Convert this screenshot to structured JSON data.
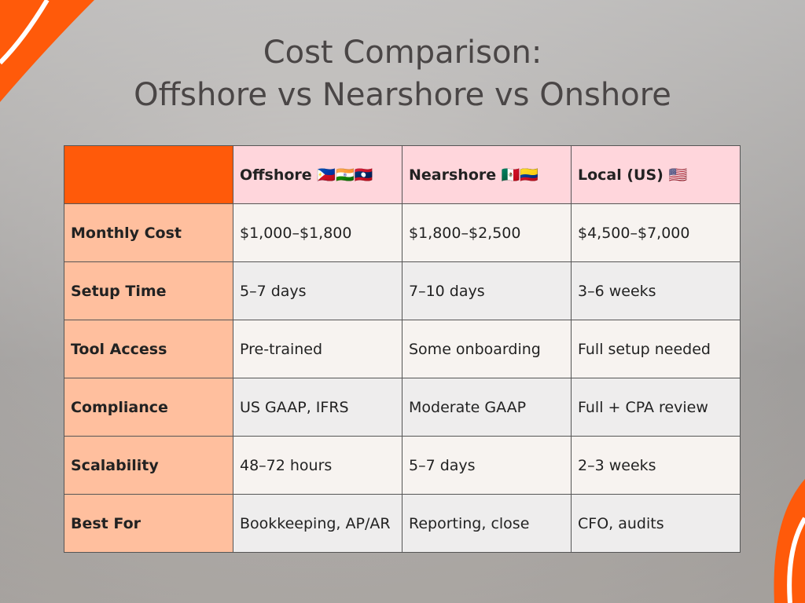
{
  "title": [
    "Cost Comparison:",
    "Offshore vs Nearshore vs Onshore"
  ],
  "table": {
    "header": [
      "",
      "Offshore 🇵🇭🇮🇳🇱🇦",
      "Nearshore 🇲🇽🇨🇴",
      "Local (US) 🇺🇸"
    ],
    "rows": [
      [
        "Monthly Cost",
        "$1,000–$1,800",
        "$1,800–$2,500",
        "$4,500–$7,000"
      ],
      [
        "Setup Time",
        "5–7 days",
        "7–10 days",
        "3–6 weeks"
      ],
      [
        "Tool Access",
        "Pre-trained",
        "Some onboarding",
        "Full setup needed"
      ],
      [
        "Compliance",
        "US GAAP, IFRS",
        "Moderate GAAP",
        "Full + CPA review"
      ],
      [
        "Scalability",
        "48–72 hours",
        "5–7 days",
        "2–3 weeks"
      ],
      [
        "Best For",
        "Bookkeeping, AP/AR",
        "Reporting, close",
        "CFO, audits"
      ]
    ]
  }
}
